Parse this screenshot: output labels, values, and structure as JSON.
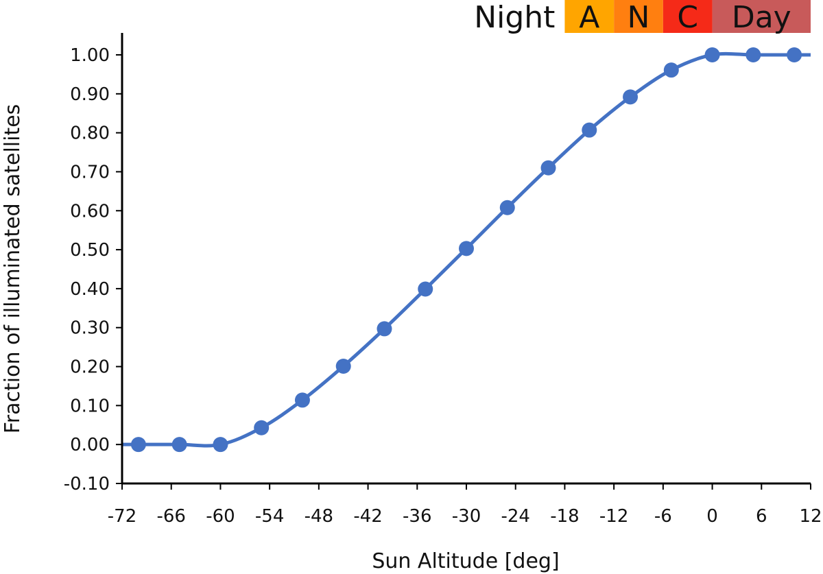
{
  "chart_data": {
    "type": "line",
    "xlabel": "Sun Altitude [deg]",
    "ylabel": "Fraction of illuminated satellites",
    "xlim": [
      -72,
      12
    ],
    "ylim": [
      -0.1,
      1.05
    ],
    "x_ticks": [
      -72,
      -66,
      -60,
      -54,
      -48,
      -42,
      -36,
      -30,
      -24,
      -18,
      -12,
      -6,
      0,
      6,
      12
    ],
    "x_tick_labels": [
      "-72",
      "-66",
      "-60",
      "-54",
      "-48",
      "-42",
      "-36",
      "-30",
      "-24",
      "-18",
      "-12",
      "-6",
      "0",
      "6",
      "12"
    ],
    "y_ticks": [
      -0.1,
      0.0,
      0.1,
      0.2,
      0.3,
      0.4,
      0.5,
      0.6,
      0.7,
      0.8,
      0.9,
      1.0
    ],
    "y_tick_labels": [
      "-0.10",
      "0.00",
      "0.10",
      "0.20",
      "0.30",
      "0.40",
      "0.50",
      "0.60",
      "0.70",
      "0.80",
      "0.90",
      "1.00"
    ],
    "grid": false,
    "smooth": true,
    "series": [
      {
        "color": "#4472C4",
        "x": [
          -70,
          -65,
          -60,
          -55,
          -50,
          -45,
          -40,
          -35,
          -30,
          -25,
          -20,
          -15,
          -10,
          -5,
          0,
          5,
          10
        ],
        "y": [
          0.0,
          0.0,
          0.0,
          0.043,
          0.114,
          0.201,
          0.297,
          0.399,
          0.503,
          0.608,
          0.71,
          0.807,
          0.892,
          0.961,
          1.0,
          1.0,
          1.0
        ]
      }
    ],
    "twilight_bands": [
      {
        "label": "Night",
        "from": -72,
        "to": -18,
        "color": "#ffffff"
      },
      {
        "label": "A",
        "from": -18,
        "to": -12,
        "color": "#FFA500"
      },
      {
        "label": "N",
        "from": -12,
        "to": -6,
        "color": "#FF7F10"
      },
      {
        "label": "C",
        "from": -6,
        "to": 0,
        "color": "#F52A18"
      },
      {
        "label": "Day",
        "from": 0,
        "to": 12,
        "color": "#C85A5A"
      }
    ]
  }
}
